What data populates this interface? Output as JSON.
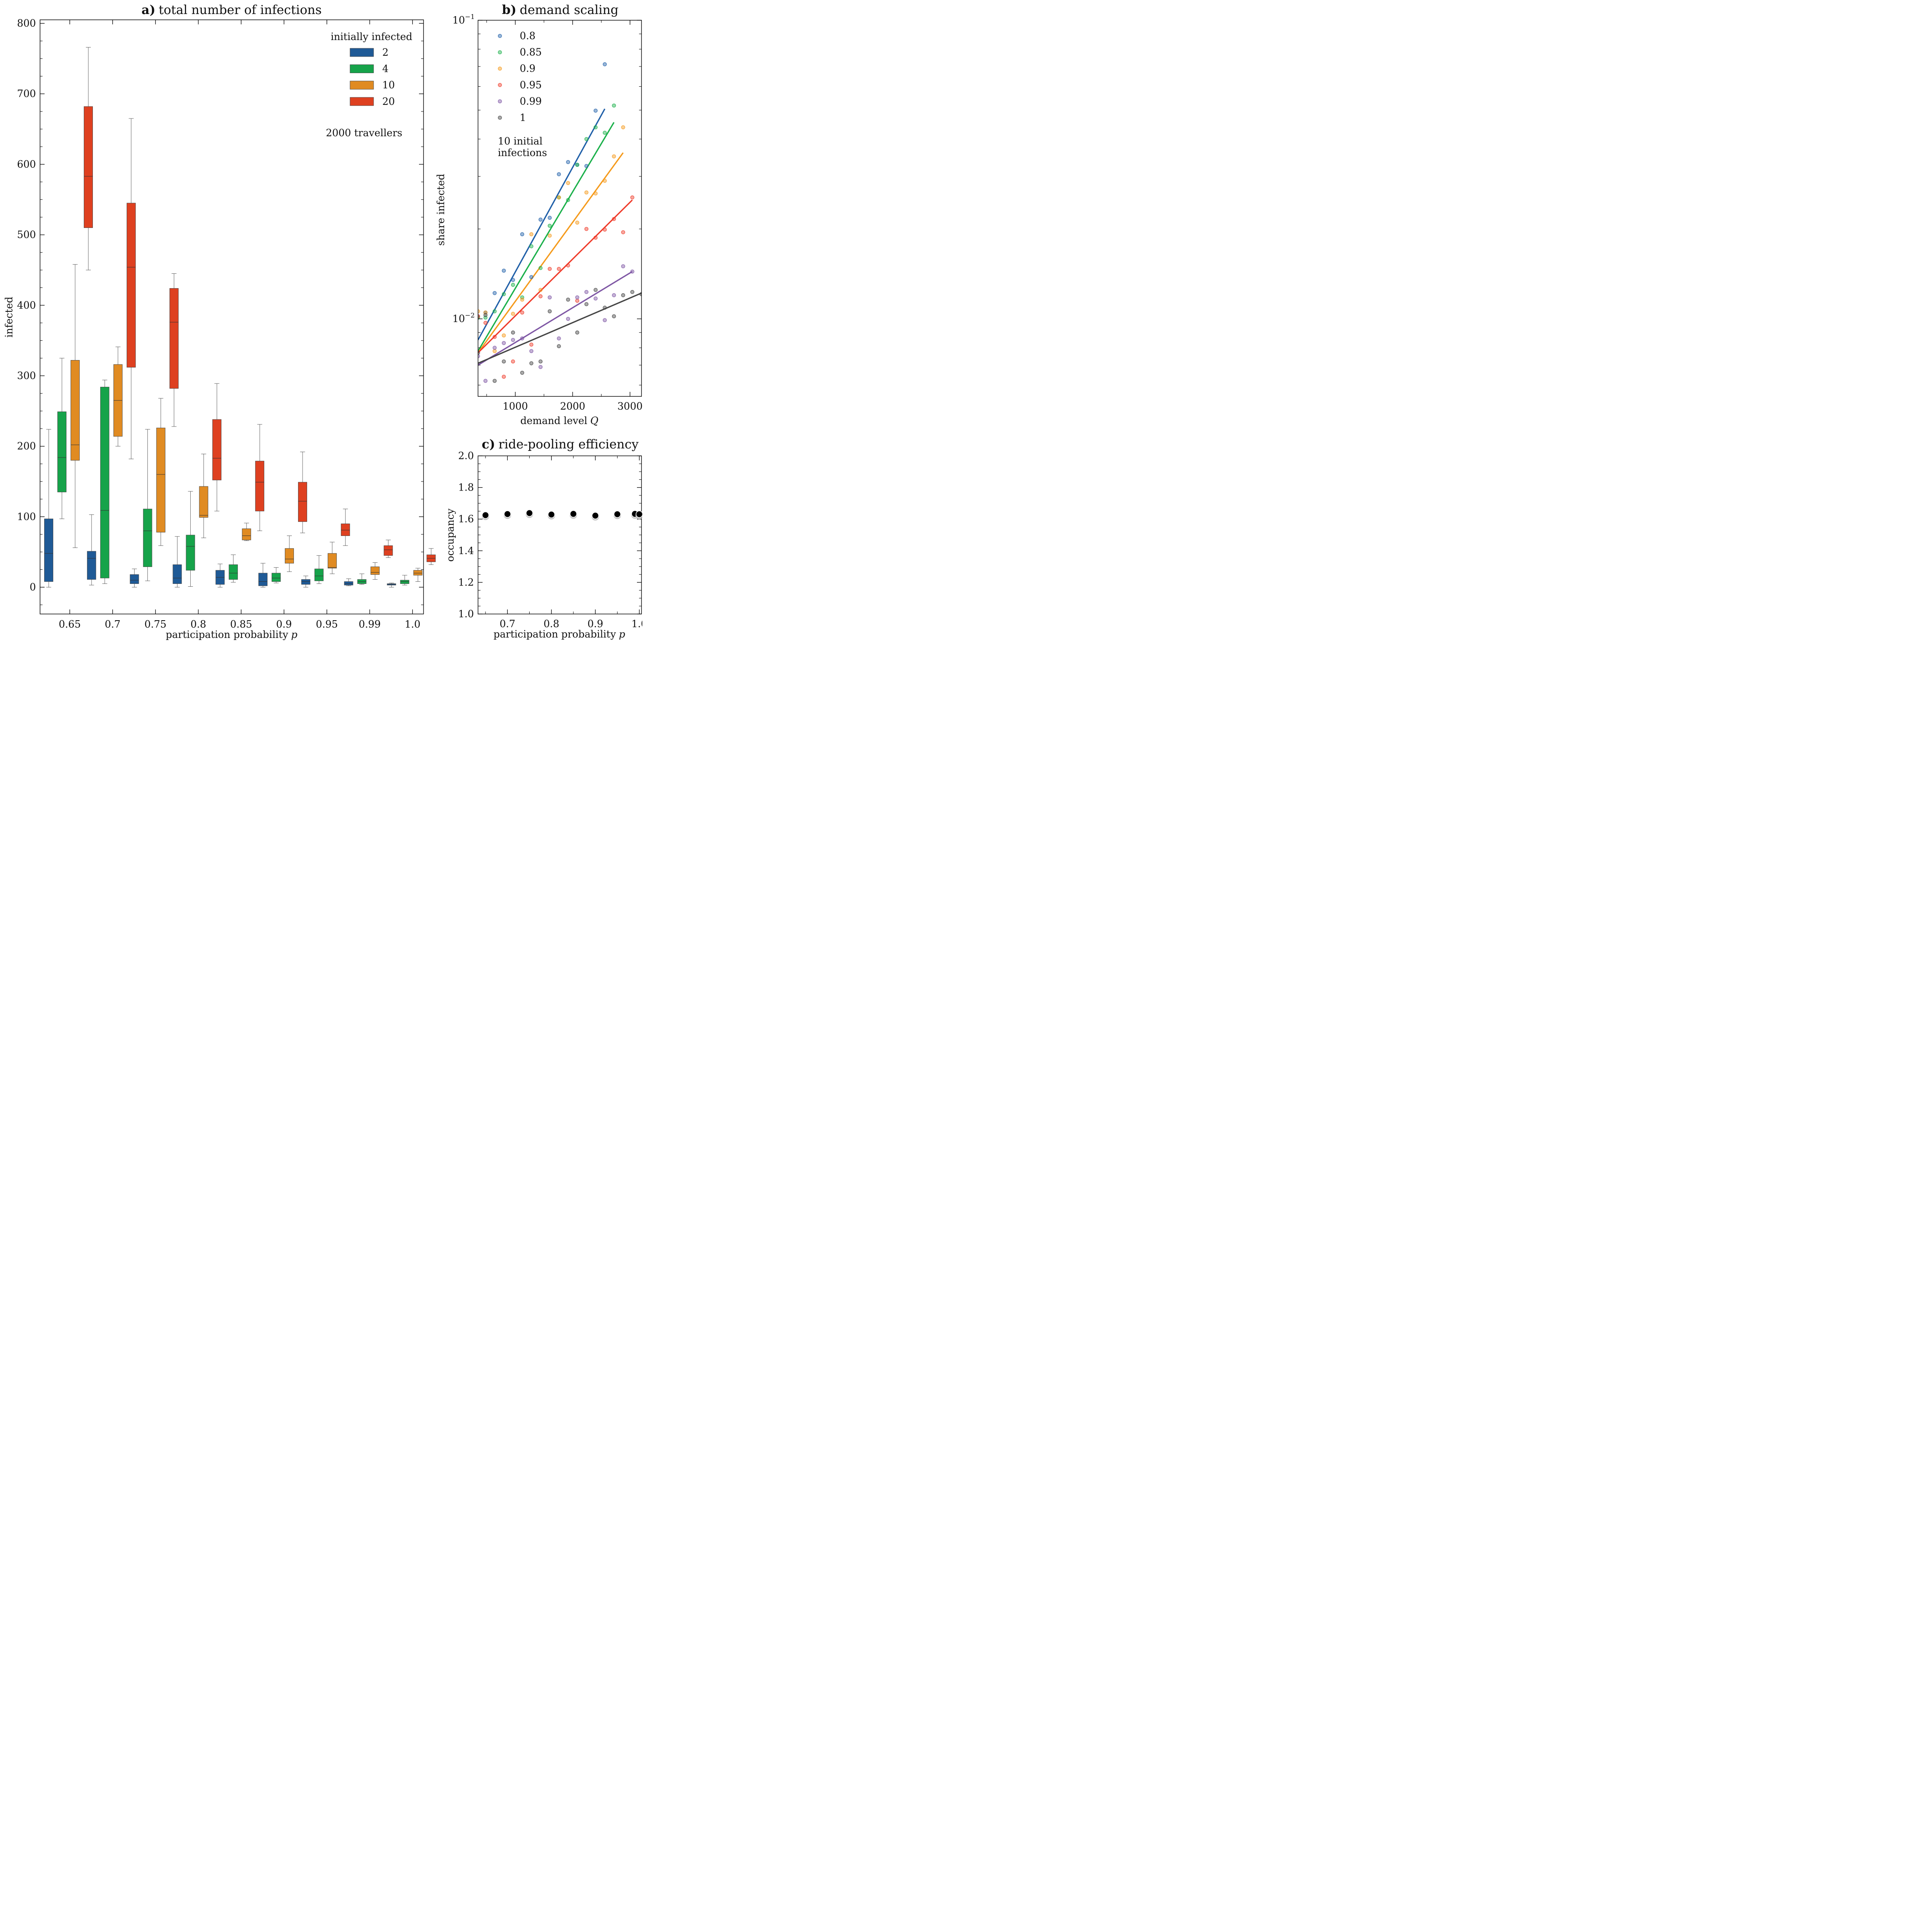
{
  "chart_data": [
    {
      "id": "a",
      "type": "box",
      "title_tag": "a)",
      "title": "total number of infections",
      "xlabel": "participation probability",
      "xlabel_var": "p",
      "ylabel": "infected",
      "ylim": [
        -38,
        805
      ],
      "yticks": [
        0,
        100,
        200,
        300,
        400,
        500,
        600,
        700,
        800
      ],
      "categories": [
        "0.65",
        "0.7",
        "0.75",
        "0.8",
        "0.85",
        "0.9",
        "0.95",
        "0.99",
        "1.0"
      ],
      "legend_title": "initially infected",
      "annotation": "2000 travellers",
      "series": [
        {
          "name": "2",
          "color": "#1f5a96",
          "boxes": [
            {
              "lo": 0,
              "q1": 8,
              "med": 48,
              "q3": 97,
              "hi": 224
            },
            {
              "lo": 3,
              "q1": 11,
              "med": 41,
              "q3": 51,
              "hi": 103
            },
            {
              "lo": 0,
              "q1": 5,
              "med": 10,
              "q3": 18,
              "hi": 26
            },
            {
              "lo": 0,
              "q1": 5,
              "med": 13,
              "q3": 32,
              "hi": 72
            },
            {
              "lo": 0,
              "q1": 4,
              "med": 14,
              "q3": 24,
              "hi": 33
            },
            {
              "lo": 0,
              "q1": 2,
              "med": 8,
              "q3": 20,
              "hi": 34
            },
            {
              "lo": 0,
              "q1": 4,
              "med": 8,
              "q3": 11,
              "hi": 16
            },
            {
              "lo": 2,
              "q1": 3,
              "med": 5,
              "q3": 8,
              "hi": 12
            },
            {
              "lo": 0,
              "q1": 3,
              "med": 4,
              "q3": 5,
              "hi": 6
            }
          ]
        },
        {
          "name": "4",
          "color": "#16a34a",
          "boxes": [
            {
              "lo": 97,
              "q1": 135,
              "med": 184,
              "q3": 249,
              "hi": 325
            },
            {
              "lo": 5,
              "q1": 13,
              "med": 109,
              "q3": 284,
              "hi": 294
            },
            {
              "lo": 9,
              "q1": 29,
              "med": 80,
              "q3": 111,
              "hi": 224
            },
            {
              "lo": 1,
              "q1": 24,
              "med": 58,
              "q3": 74,
              "hi": 136
            },
            {
              "lo": 7,
              "q1": 11,
              "med": 20,
              "q3": 32,
              "hi": 46
            },
            {
              "lo": 6,
              "q1": 8,
              "med": 13,
              "q3": 20,
              "hi": 28
            },
            {
              "lo": 5,
              "q1": 9,
              "med": 16,
              "q3": 26,
              "hi": 45
            },
            {
              "lo": 4,
              "q1": 5,
              "med": 8,
              "q3": 11,
              "hi": 19
            },
            {
              "lo": 3,
              "q1": 5,
              "med": 8,
              "q3": 10,
              "hi": 17
            }
          ]
        },
        {
          "name": "10",
          "color": "#e08b22",
          "boxes": [
            {
              "lo": 56,
              "q1": 180,
              "med": 202,
              "q3": 322,
              "hi": 458
            },
            {
              "lo": 200,
              "q1": 214,
              "med": 265,
              "q3": 316,
              "hi": 341
            },
            {
              "lo": 59,
              "q1": 78,
              "med": 160,
              "q3": 226,
              "hi": 268
            },
            {
              "lo": 70,
              "q1": 99,
              "med": 102,
              "q3": 143,
              "hi": 189
            },
            {
              "lo": 66,
              "q1": 67,
              "med": 73,
              "q3": 83,
              "hi": 91
            },
            {
              "lo": 22,
              "q1": 34,
              "med": 40,
              "q3": 55,
              "hi": 73
            },
            {
              "lo": 19,
              "q1": 27,
              "med": 28,
              "q3": 48,
              "hi": 64
            },
            {
              "lo": 11,
              "q1": 18,
              "med": 21,
              "q3": 29,
              "hi": 35
            },
            {
              "lo": 8,
              "q1": 17,
              "med": 20,
              "q3": 24,
              "hi": 27
            }
          ]
        },
        {
          "name": "20",
          "color": "#de4020",
          "boxes": [
            {
              "lo": 450,
              "q1": 510,
              "med": 583,
              "q3": 682,
              "hi": 766
            },
            {
              "lo": 182,
              "q1": 312,
              "med": 454,
              "q3": 545,
              "hi": 665
            },
            {
              "lo": 228,
              "q1": 282,
              "med": 376,
              "q3": 424,
              "hi": 445
            },
            {
              "lo": 108,
              "q1": 152,
              "med": 183,
              "q3": 238,
              "hi": 289
            },
            {
              "lo": 80,
              "q1": 108,
              "med": 149,
              "q3": 179,
              "hi": 231
            },
            {
              "lo": 77,
              "q1": 93,
              "med": 122,
              "q3": 149,
              "hi": 192
            },
            {
              "lo": 59,
              "q1": 73,
              "med": 81,
              "q3": 90,
              "hi": 111
            },
            {
              "lo": 42,
              "q1": 45,
              "med": 53,
              "q3": 59,
              "hi": 67
            },
            {
              "lo": 32,
              "q1": 36,
              "med": 41,
              "q3": 46,
              "hi": 55
            }
          ]
        }
      ]
    },
    {
      "id": "b",
      "type": "scatter",
      "title_tag": "b)",
      "title": "demand scaling",
      "xlabel": "demand level",
      "xlabel_var": "Q",
      "ylabel": "share infected",
      "yscale": "log",
      "xlim": [
        350,
        3200
      ],
      "ylim": [
        0.0055,
        0.1
      ],
      "xticks": [
        1000,
        2000,
        3000
      ],
      "yticks": [
        {
          "v": 0.01,
          "base": "10",
          "exp": "−2"
        },
        {
          "v": 0.1,
          "base": "10",
          "exp": "−1"
        }
      ],
      "annotation_lines": [
        "10 initial",
        "infections"
      ],
      "series": [
        {
          "name": "0.8",
          "color": "#1f5fa8",
          "fit": [
            [
              350,
              0.0085
            ],
            [
              2560,
              0.0505
            ]
          ],
          "x": [
            350,
            480,
            640,
            800,
            960,
            1120,
            1280,
            1440,
            1600,
            1760,
            1920,
            2080,
            2240,
            2400,
            2560
          ],
          "y": [
            0.0102,
            0.0105,
            0.0122,
            0.0145,
            0.0135,
            0.0192,
            0.0138,
            0.0215,
            0.0218,
            0.0305,
            0.0335,
            0.0328,
            0.0325,
            0.0498,
            0.0712
          ]
        },
        {
          "name": "0.85",
          "color": "#1ab04a",
          "fit": [
            [
              350,
              0.0078
            ],
            [
              2720,
              0.0455
            ]
          ],
          "x": [
            350,
            480,
            640,
            800,
            960,
            1120,
            1280,
            1440,
            1600,
            1760,
            1920,
            2080,
            2240,
            2400,
            2560,
            2720
          ],
          "y": [
            0.0101,
            0.0101,
            0.0106,
            0.0121,
            0.013,
            0.0118,
            0.0175,
            0.0148,
            0.0205,
            0.0255,
            0.025,
            0.0328,
            0.04,
            0.0438,
            0.042,
            0.0518
          ]
        },
        {
          "name": "0.9",
          "color": "#f59a1b",
          "fit": [
            [
              350,
              0.0077
            ],
            [
              2880,
              0.036
            ]
          ],
          "x": [
            350,
            480,
            640,
            800,
            960,
            1120,
            1280,
            1440,
            1600,
            1760,
            1920,
            2080,
            2240,
            2400,
            2560,
            2720,
            2880
          ],
          "y": [
            0.0106,
            0.0105,
            0.0078,
            0.0088,
            0.0104,
            0.0116,
            0.0192,
            0.0125,
            0.019,
            0.0255,
            0.0285,
            0.021,
            0.0265,
            0.0263,
            0.029,
            0.035,
            0.0438
          ]
        },
        {
          "name": "0.95",
          "color": "#ef3b2a",
          "fit": [
            [
              350,
              0.0077
            ],
            [
              3040,
              0.025
            ]
          ],
          "x": [
            350,
            480,
            640,
            800,
            960,
            1120,
            1280,
            1440,
            1600,
            1760,
            1920,
            2080,
            2240,
            2400,
            2560,
            2720,
            2880,
            3040
          ],
          "y": [
            0.0102,
            0.0097,
            0.0087,
            0.0064,
            0.0072,
            0.0105,
            0.0082,
            0.0119,
            0.0147,
            0.0147,
            0.0151,
            0.0115,
            0.02,
            0.0187,
            0.0199,
            0.0216,
            0.0195,
            0.0255
          ]
        },
        {
          "name": "0.99",
          "color": "#7e56a4",
          "fit": [
            [
              350,
              0.007
            ],
            [
              3040,
              0.0144
            ]
          ],
          "x": [
            350,
            480,
            640,
            800,
            960,
            1120,
            1280,
            1440,
            1600,
            1760,
            1920,
            2080,
            2240,
            2400,
            2560,
            2720,
            2880,
            3040
          ],
          "y": [
            0.0075,
            0.0062,
            0.008,
            0.0083,
            0.0085,
            0.0086,
            0.0078,
            0.0069,
            0.0118,
            0.0086,
            0.01,
            0.0118,
            0.0123,
            0.0117,
            0.0099,
            0.012,
            0.015,
            0.0144
          ]
        },
        {
          "name": "1",
          "color": "#444444",
          "fit": [
            [
              350,
              0.0071
            ],
            [
              3200,
              0.0122
            ]
          ],
          "x": [
            350,
            480,
            640,
            800,
            960,
            1120,
            1280,
            1440,
            1600,
            1760,
            1920,
            2080,
            2240,
            2400,
            2560,
            2720,
            2880,
            3040,
            3200
          ],
          "y": [
            0.0077,
            0.0103,
            0.0062,
            0.0072,
            0.009,
            0.0066,
            0.0071,
            0.0072,
            0.0106,
            0.0081,
            0.0116,
            0.009,
            0.0112,
            0.0125,
            0.0109,
            0.0102,
            0.012,
            0.0123,
            0.0121
          ]
        }
      ]
    },
    {
      "id": "c",
      "type": "scatter",
      "title_tag": "c)",
      "title": "ride-pooling efficiency",
      "xlabel": "participation probability",
      "xlabel_var": "p",
      "ylabel": "occupancy",
      "xlim": [
        0.633,
        1.005
      ],
      "ylim": [
        1.0,
        2.0
      ],
      "xticks": [
        0.7,
        0.8,
        0.9,
        1.0
      ],
      "yticks": [
        1.0,
        1.2,
        1.4,
        1.6,
        1.8,
        2.0
      ],
      "series": [
        {
          "name": "occupancy",
          "color": "#000000",
          "x": [
            0.65,
            0.7,
            0.75,
            0.8,
            0.85,
            0.9,
            0.95,
            0.99,
            1.0
          ],
          "y": [
            1.625,
            1.632,
            1.638,
            1.629,
            1.633,
            1.622,
            1.631,
            1.633,
            1.631
          ]
        }
      ]
    }
  ]
}
